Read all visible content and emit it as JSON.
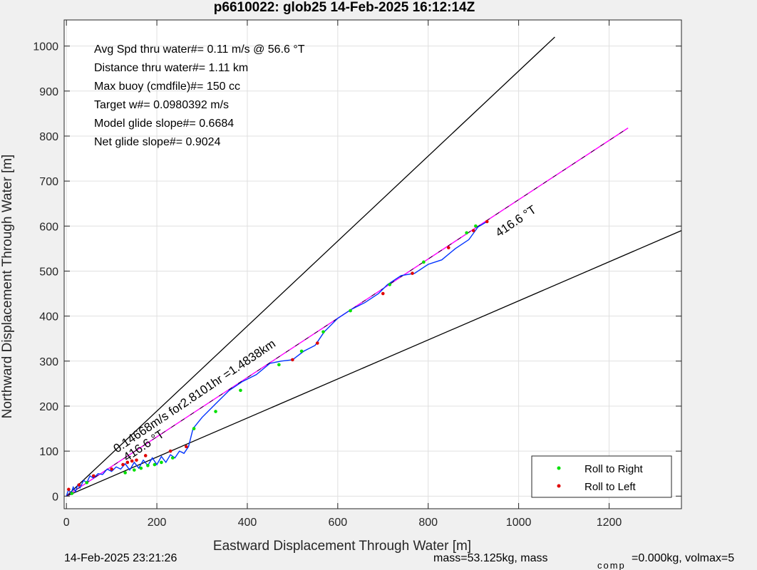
{
  "chart_data": {
    "type": "scatter",
    "title": "p6610022: glob25 14-Feb-2025 16:12:14Z",
    "xlabel": "Eastward Displacement Through Water [m]",
    "ylabel": "Northward Displacement Through Water [m]",
    "xlim": [
      -5,
      1360
    ],
    "ylim": [
      -28,
      1058
    ],
    "xticks": [
      "0",
      "200",
      "400",
      "600",
      "800",
      "1000",
      "1200"
    ],
    "yticks": [
      "0",
      "100",
      "200",
      "300",
      "400",
      "500",
      "600",
      "700",
      "800",
      "900",
      "1000"
    ],
    "grid": true,
    "annotations": [
      "Avg Spd thru water#=  0.11 m/s @  56.6         °T",
      "Distance thru water#=  1.11 km",
      "Max buoy (cmdfile)#= 150 cc",
      "Target w#= 0.0980392 m/s",
      "Model glide slope#= 0.6684",
      "Net glide slope#= 0.9024"
    ],
    "rotated_labels": [
      "0.14668m/s for2.8101hr =1.4838km",
      "416.6  °T",
      "416.6  °T"
    ],
    "legend": {
      "placement": "bottom-right",
      "entries": [
        "Roll to Right",
        "Roll to Left"
      ]
    },
    "footer_left": "14-Feb-2025 23:21:26",
    "footer_right": "mass=53.125kg, mass",
    "footer_sub": "comp",
    "footer_right2": "=0.000kg, volmax=5",
    "reference_lines": [
      {
        "x": [
          0,
          1080
        ],
        "y": [
          0,
          1020
        ]
      },
      {
        "x": [
          0,
          1360
        ],
        "y": [
          0,
          590
        ]
      }
    ],
    "mean_heading_line": {
      "x": [
        0,
        1242
      ],
      "y": [
        0,
        818
      ]
    },
    "track": {
      "x": [
        0,
        5,
        10,
        15,
        20,
        25,
        30,
        38,
        45,
        52,
        60,
        70,
        80,
        90,
        100,
        110,
        120,
        130,
        140,
        150,
        160,
        170,
        180,
        190,
        200,
        210,
        220,
        230,
        240,
        250,
        260,
        270,
        280,
        300,
        330,
        360,
        390,
        420,
        450,
        475,
        500,
        525,
        550,
        570,
        600,
        630,
        660,
        690,
        710,
        740,
        770,
        800,
        830,
        860,
        890,
        910,
        930
      ],
      "y": [
        0,
        15,
        5,
        20,
        10,
        25,
        18,
        35,
        30,
        45,
        40,
        50,
        48,
        60,
        55,
        65,
        60,
        72,
        58,
        75,
        62,
        80,
        68,
        85,
        70,
        88,
        75,
        92,
        85,
        100,
        95,
        110,
        150,
        175,
        205,
        235,
        255,
        270,
        295,
        300,
        303,
        322,
        335,
        365,
        395,
        415,
        430,
        450,
        470,
        490,
        495,
        515,
        525,
        550,
        570,
        598,
        610
      ]
    },
    "roll_right": {
      "x": [
        12,
        45,
        130,
        150,
        165,
        180,
        195,
        210,
        235,
        282,
        330,
        385,
        470,
        520,
        568,
        628,
        715,
        790,
        885,
        905
      ],
      "y": [
        6,
        30,
        52,
        58,
        62,
        68,
        70,
        75,
        85,
        150,
        188,
        235,
        292,
        322,
        365,
        412,
        470,
        520,
        585,
        600
      ],
      "color": "#00e000"
    },
    "roll_left": {
      "x": [
        5,
        28,
        60,
        100,
        125,
        135,
        145,
        155,
        175,
        230,
        265,
        500,
        555,
        700,
        765,
        845,
        900,
        930
      ],
      "y": [
        15,
        25,
        45,
        60,
        70,
        75,
        78,
        80,
        90,
        100,
        110,
        303,
        340,
        450,
        495,
        552,
        590,
        610
      ],
      "color": "#e00000"
    },
    "colors": {
      "track": "#0033ff",
      "heading_line": "#ff00ff",
      "reference": "#000000",
      "grid": "#e0e0e0"
    }
  }
}
